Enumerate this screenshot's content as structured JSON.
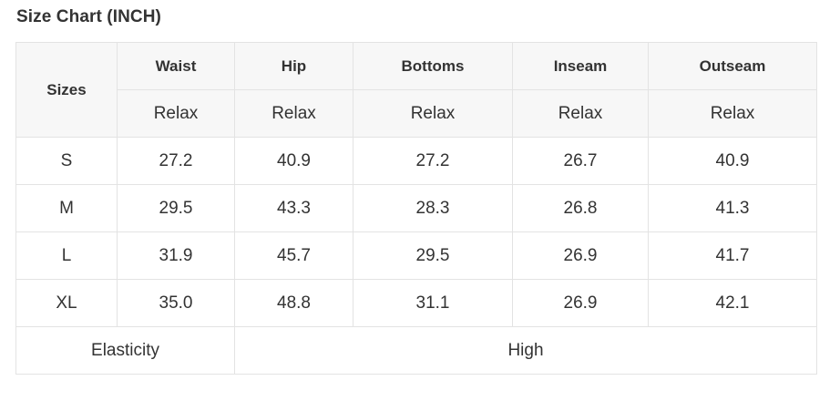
{
  "title": "Size Chart (INCH)",
  "table": {
    "corner_header": "Sizes",
    "columns": [
      "Waist",
      "Hip",
      "Bottoms",
      "Inseam",
      "Outseam"
    ],
    "subheaders": [
      "Relax",
      "Relax",
      "Relax",
      "Relax",
      "Relax"
    ],
    "rows": [
      {
        "size": "S",
        "values": [
          "27.2",
          "40.9",
          "27.2",
          "26.7",
          "40.9"
        ]
      },
      {
        "size": "M",
        "values": [
          "29.5",
          "43.3",
          "28.3",
          "26.8",
          "41.3"
        ]
      },
      {
        "size": "L",
        "values": [
          "31.9",
          "45.7",
          "29.5",
          "26.9",
          "41.7"
        ]
      },
      {
        "size": "XL",
        "values": [
          "35.0",
          "48.8",
          "31.1",
          "26.9",
          "42.1"
        ]
      }
    ],
    "footer": {
      "label": "Elasticity",
      "value": "High"
    }
  }
}
